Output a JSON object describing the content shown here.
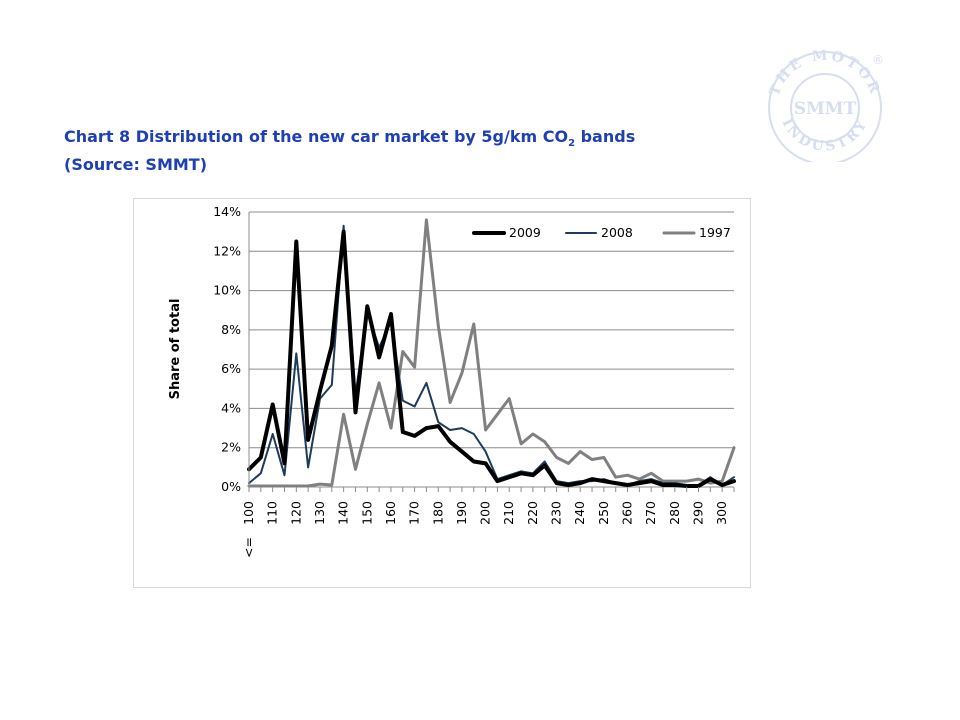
{
  "page": {
    "title_part1": "Chart 8 Distribution of the new car market by 5g/km CO",
    "title_sub": "2",
    "title_part2": " bands",
    "title_line2": "(Source: SMMT)",
    "logo": {
      "ring_text": "THE MOTOR INDUSTRY",
      "center_text": "SMMT",
      "registered": "®",
      "color": "#d7def0"
    }
  },
  "chart_data": {
    "type": "line",
    "title": "",
    "xlabel": "",
    "ylabel": "Share of total",
    "ylim": [
      0,
      14
    ],
    "yticks": [
      0,
      2,
      4,
      6,
      8,
      10,
      12,
      14
    ],
    "ytick_labels": [
      "0%",
      "2%",
      "4%",
      "6%",
      "8%",
      "10%",
      "12%",
      "14%"
    ],
    "x_tick_labels": [
      "100",
      "110",
      "120",
      "130",
      "140",
      "150",
      "160",
      "170",
      "180",
      "190",
      "200",
      "210",
      "220",
      "230",
      "240",
      "250",
      "260",
      "270",
      "280",
      "290",
      "300"
    ],
    "first_tick_prefix": "<=",
    "x": [
      100,
      105,
      110,
      115,
      120,
      125,
      130,
      135,
      140,
      145,
      150,
      155,
      160,
      165,
      170,
      175,
      180,
      185,
      190,
      195,
      200,
      205,
      210,
      215,
      220,
      225,
      230,
      235,
      240,
      245,
      250,
      255,
      260,
      265,
      270,
      275,
      280,
      285,
      290,
      295,
      300,
      305
    ],
    "legend_position": "top-right",
    "grid": true,
    "series": [
      {
        "name": "2009",
        "color": "#000000",
        "width": 4,
        "values": [
          0.9,
          1.5,
          4.2,
          1.2,
          12.5,
          2.4,
          4.9,
          7.2,
          13.0,
          3.8,
          9.2,
          6.6,
          8.8,
          2.8,
          2.6,
          3.0,
          3.1,
          2.3,
          1.8,
          1.3,
          1.2,
          0.3,
          0.5,
          0.7,
          0.6,
          1.1,
          0.2,
          0.1,
          0.2,
          0.4,
          0.3,
          0.2,
          0.1,
          0.2,
          0.3,
          0.1,
          0.1,
          0.05,
          0.05,
          0.4,
          0.1,
          0.3
        ]
      },
      {
        "name": "2008",
        "color": "#1f3a5a",
        "width": 2,
        "values": [
          0.2,
          0.7,
          2.7,
          0.6,
          6.8,
          1.0,
          4.5,
          5.2,
          13.3,
          4.7,
          8.9,
          7.1,
          8.4,
          4.4,
          4.1,
          5.3,
          3.3,
          2.9,
          3.0,
          2.7,
          1.8,
          0.4,
          0.6,
          0.8,
          0.7,
          1.3,
          0.3,
          0.2,
          0.3,
          0.3,
          0.4,
          0.2,
          0.1,
          0.3,
          0.4,
          0.2,
          0.2,
          0.1,
          0.1,
          0.5,
          0.1,
          0.5
        ]
      },
      {
        "name": "1997",
        "color": "#808080",
        "width": 3,
        "values": [
          0.05,
          0.05,
          0.05,
          0.05,
          0.05,
          0.05,
          0.15,
          0.1,
          3.7,
          0.9,
          3.2,
          5.3,
          3.0,
          6.9,
          6.1,
          13.6,
          8.2,
          4.3,
          5.8,
          8.3,
          2.9,
          3.7,
          4.5,
          2.2,
          2.7,
          2.3,
          1.5,
          1.2,
          1.8,
          1.4,
          1.5,
          0.5,
          0.6,
          0.4,
          0.7,
          0.3,
          0.3,
          0.3,
          0.4,
          0.2,
          0.3,
          2.0
        ]
      }
    ]
  }
}
